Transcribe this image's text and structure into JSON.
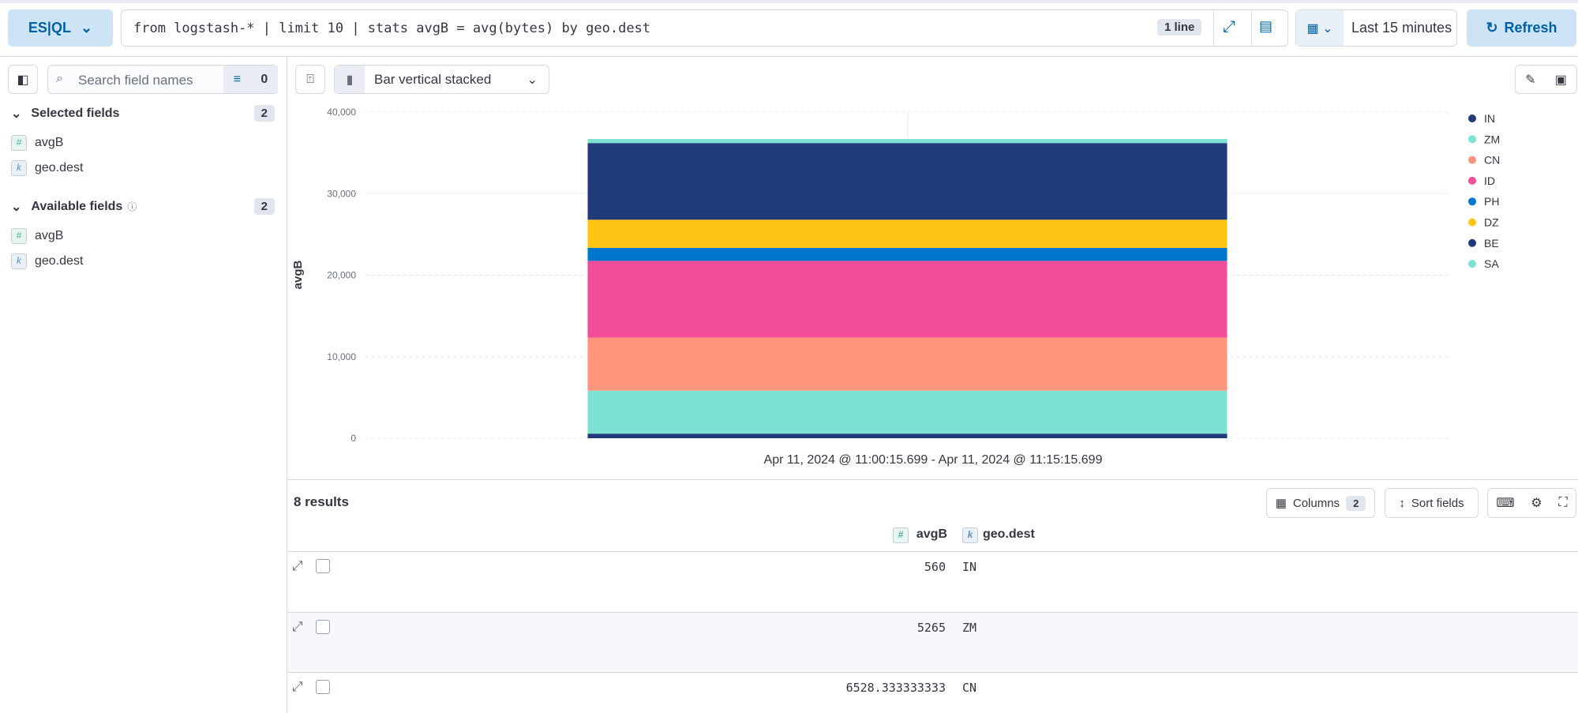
{
  "query_bar": {
    "language": "ES|QL",
    "query": "from logstash-* | limit 10 | stats avgB = avg(bytes) by geo.dest",
    "lines_badge": "1 line",
    "time_range": "Last 15 minutes",
    "refresh": "Refresh"
  },
  "sidebar": {
    "search_placeholder": "Search field names",
    "filter_count": 0,
    "selected_fields": {
      "title": "Selected fields",
      "count": 2,
      "fields": [
        {
          "type": "#",
          "name": "avgB"
        },
        {
          "type": "k",
          "name": "geo.dest"
        }
      ]
    },
    "available_fields": {
      "title": "Available fields",
      "count": 2,
      "fields": [
        {
          "type": "#",
          "name": "avgB"
        },
        {
          "type": "k",
          "name": "geo.dest"
        }
      ]
    }
  },
  "toolbar": {
    "chart_type": "Bar vertical stacked"
  },
  "results": {
    "count_label": "8 results",
    "columns_button": "Columns",
    "columns_count": 2,
    "sort_button": "Sort fields",
    "headers": [
      {
        "type": "#",
        "name": "avgB"
      },
      {
        "type": "k",
        "name": "geo.dest"
      }
    ]
  },
  "chart_data": {
    "type": "bar",
    "stacked": true,
    "y_label": "avgB",
    "x_label": "Apr 11, 2024 @ 11:00:15.699 - Apr 11, 2024 @ 11:15:15.699",
    "categories": [
      null
    ],
    "series": [
      {
        "name": "IN",
        "color": "#213a7a",
        "values": [
          560
        ]
      },
      {
        "name": "ZM",
        "color": "#7de2d1",
        "values": [
          5265
        ]
      },
      {
        "name": "CN",
        "color": "#ff957d",
        "values": [
          6528.333333333
        ]
      },
      {
        "name": "ID",
        "color": "#f04e98",
        "values": [
          9400
        ]
      },
      {
        "name": "PH",
        "color": "#0077cc",
        "values": [
          1600
        ]
      },
      {
        "name": "DZ",
        "color": "#fec514",
        "values": [
          3450
        ]
      },
      {
        "name": "BE",
        "color": "#213a7a",
        "values": [
          9400
        ]
      },
      {
        "name": "SA",
        "color": "#7de2d1",
        "values": [
          500
        ]
      }
    ],
    "ylim": [
      0,
      40000
    ],
    "yticks": [
      0,
      {
        "value": 10000,
        "label": "10,000"
      },
      {
        "value": 20000,
        "label": "20,000"
      },
      {
        "value": 30000,
        "label": "30,000"
      },
      {
        "value": 40000,
        "label": "40,000"
      }
    ],
    "grid": true,
    "legend": "right"
  }
}
